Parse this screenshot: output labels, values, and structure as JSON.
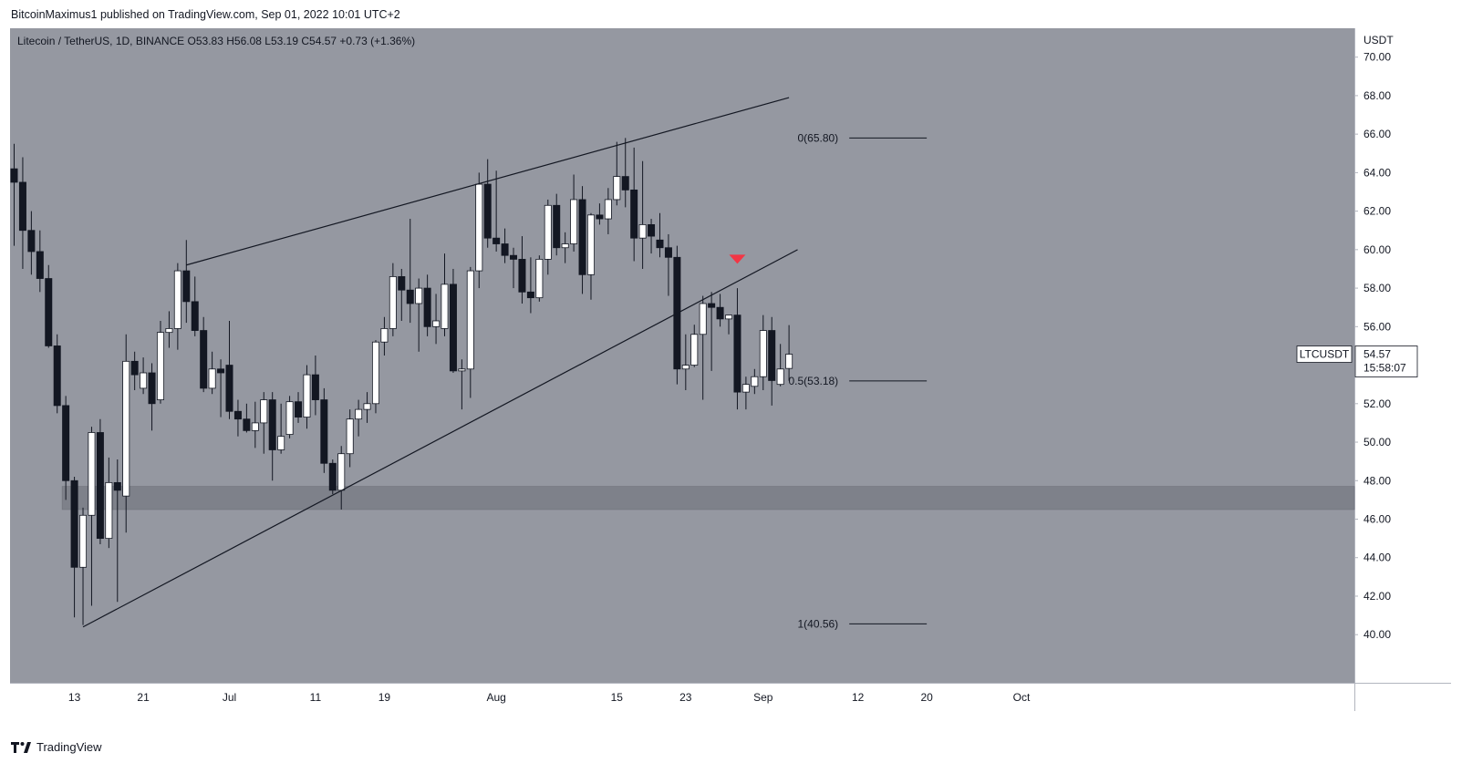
{
  "header": {
    "published_text": "BitcoinMaximus1 published on TradingView.com, Sep 01, 2022 10:01 UTC+2"
  },
  "footer": {
    "brand": "TradingView",
    "logo_icon": "tradingview-logo-icon"
  },
  "colors": {
    "background": "#9598a1",
    "bull": "#ffffff",
    "bear": "#131722",
    "support_zone": "#7a7d86",
    "arrow": "#f23645"
  },
  "legend": {
    "symbol": "Litecoin / TetherUS, 1D, BINANCE",
    "o_label": "O",
    "o_value": "53.83",
    "h_label": "H",
    "h_value": "56.08",
    "l_label": "L",
    "l_value": "53.19",
    "c_label": "C",
    "c_value": "54.57",
    "change": "+0.73 (+1.36%)"
  },
  "price_label": {
    "symbol": "LTCUSDT",
    "price": "54.57",
    "countdown": "15:58:07"
  },
  "chart_data": {
    "type": "candlestick",
    "title": "Litecoin / TetherUS, 1D, BINANCE",
    "y_axis_unit": "USDT",
    "ylim": [
      37.5,
      71.5
    ],
    "y_ticks": [
      "40.00",
      "42.00",
      "44.00",
      "46.00",
      "48.00",
      "50.00",
      "52.00",
      "54.00",
      "56.00",
      "58.00",
      "60.00",
      "62.00",
      "64.00",
      "66.00",
      "68.00",
      "70.00"
    ],
    "x_ticks": [
      {
        "label": "13",
        "date": "2022-06-13"
      },
      {
        "label": "21",
        "date": "2022-06-21"
      },
      {
        "label": "Jul",
        "date": "2022-07-01"
      },
      {
        "label": "11",
        "date": "2022-07-11"
      },
      {
        "label": "19",
        "date": "2022-07-19"
      },
      {
        "label": "Aug",
        "date": "2022-08-01"
      },
      {
        "label": "15",
        "date": "2022-08-15"
      },
      {
        "label": "23",
        "date": "2022-08-23"
      },
      {
        "label": "Sep",
        "date": "2022-09-01"
      },
      {
        "label": "12",
        "date": "2022-09-12"
      },
      {
        "label": "20",
        "date": "2022-09-20"
      },
      {
        "label": "Oct",
        "date": "2022-10-01"
      }
    ],
    "x_start_date": "2022-06-06",
    "candles": [
      {
        "date": "2022-06-06",
        "o": 64.2,
        "h": 65.5,
        "l": 60.2,
        "c": 63.5
      },
      {
        "date": "2022-06-07",
        "o": 63.5,
        "h": 64.8,
        "l": 59.0,
        "c": 61.0
      },
      {
        "date": "2022-06-08",
        "o": 61.0,
        "h": 62.0,
        "l": 58.7,
        "c": 59.9
      },
      {
        "date": "2022-06-09",
        "o": 59.9,
        "h": 61.0,
        "l": 57.8,
        "c": 58.5
      },
      {
        "date": "2022-06-10",
        "o": 58.5,
        "h": 59.2,
        "l": 54.9,
        "c": 55.0
      },
      {
        "date": "2022-06-11",
        "o": 55.0,
        "h": 55.6,
        "l": 51.5,
        "c": 51.9
      },
      {
        "date": "2022-06-12",
        "o": 51.9,
        "h": 52.4,
        "l": 47.0,
        "c": 48.0
      },
      {
        "date": "2022-06-13",
        "o": 48.0,
        "h": 48.2,
        "l": 40.9,
        "c": 43.5
      },
      {
        "date": "2022-06-14",
        "o": 43.5,
        "h": 46.6,
        "l": 40.5,
        "c": 46.2
      },
      {
        "date": "2022-06-15",
        "o": 46.2,
        "h": 50.8,
        "l": 41.5,
        "c": 50.5
      },
      {
        "date": "2022-06-16",
        "o": 50.5,
        "h": 51.2,
        "l": 44.7,
        "c": 45.0
      },
      {
        "date": "2022-06-17",
        "o": 45.0,
        "h": 49.2,
        "l": 44.5,
        "c": 47.9
      },
      {
        "date": "2022-06-18",
        "o": 47.9,
        "h": 49.1,
        "l": 41.7,
        "c": 47.5
      },
      {
        "date": "2022-06-19",
        "o": 47.2,
        "h": 55.6,
        "l": 45.3,
        "c": 54.2
      },
      {
        "date": "2022-06-20",
        "o": 54.2,
        "h": 54.7,
        "l": 52.7,
        "c": 53.5
      },
      {
        "date": "2022-06-21",
        "o": 52.8,
        "h": 54.4,
        "l": 52.5,
        "c": 53.6
      },
      {
        "date": "2022-06-22",
        "o": 53.6,
        "h": 54.1,
        "l": 50.6,
        "c": 52.0
      },
      {
        "date": "2022-06-23",
        "o": 52.2,
        "h": 56.3,
        "l": 52.0,
        "c": 55.7
      },
      {
        "date": "2022-06-24",
        "o": 55.7,
        "h": 56.8,
        "l": 54.9,
        "c": 55.9
      },
      {
        "date": "2022-06-25",
        "o": 55.9,
        "h": 59.3,
        "l": 54.8,
        "c": 58.9
      },
      {
        "date": "2022-06-26",
        "o": 58.9,
        "h": 60.5,
        "l": 56.2,
        "c": 57.3
      },
      {
        "date": "2022-06-27",
        "o": 57.3,
        "h": 58.6,
        "l": 55.5,
        "c": 55.8
      },
      {
        "date": "2022-06-28",
        "o": 55.8,
        "h": 56.5,
        "l": 52.6,
        "c": 52.8
      },
      {
        "date": "2022-06-29",
        "o": 52.8,
        "h": 54.7,
        "l": 52.5,
        "c": 53.8
      },
      {
        "date": "2022-06-30",
        "o": 53.8,
        "h": 54.3,
        "l": 51.3,
        "c": 53.6
      },
      {
        "date": "2022-07-01",
        "o": 54.0,
        "h": 56.3,
        "l": 51.2,
        "c": 51.6
      },
      {
        "date": "2022-07-02",
        "o": 51.6,
        "h": 52.2,
        "l": 50.3,
        "c": 51.2
      },
      {
        "date": "2022-07-03",
        "o": 51.2,
        "h": 52.0,
        "l": 50.5,
        "c": 50.6
      },
      {
        "date": "2022-07-04",
        "o": 50.6,
        "h": 52.1,
        "l": 49.7,
        "c": 51.0
      },
      {
        "date": "2022-07-05",
        "o": 51.0,
        "h": 52.6,
        "l": 49.4,
        "c": 52.2
      },
      {
        "date": "2022-07-06",
        "o": 52.2,
        "h": 52.6,
        "l": 48.0,
        "c": 49.6
      },
      {
        "date": "2022-07-07",
        "o": 49.6,
        "h": 52.0,
        "l": 49.4,
        "c": 50.3
      },
      {
        "date": "2022-07-08",
        "o": 50.4,
        "h": 52.4,
        "l": 50.2,
        "c": 52.1
      },
      {
        "date": "2022-07-09",
        "o": 52.1,
        "h": 52.6,
        "l": 51.0,
        "c": 51.3
      },
      {
        "date": "2022-07-10",
        "o": 51.3,
        "h": 54.0,
        "l": 50.7,
        "c": 53.5
      },
      {
        "date": "2022-07-11",
        "o": 53.5,
        "h": 54.5,
        "l": 51.4,
        "c": 52.2
      },
      {
        "date": "2022-07-12",
        "o": 52.2,
        "h": 52.8,
        "l": 48.4,
        "c": 48.9
      },
      {
        "date": "2022-07-13",
        "o": 48.9,
        "h": 49.1,
        "l": 47.3,
        "c": 47.5
      },
      {
        "date": "2022-07-14",
        "o": 47.5,
        "h": 49.8,
        "l": 46.5,
        "c": 49.4
      },
      {
        "date": "2022-07-15",
        "o": 49.4,
        "h": 51.7,
        "l": 48.7,
        "c": 51.2
      },
      {
        "date": "2022-07-16",
        "o": 51.2,
        "h": 52.2,
        "l": 50.3,
        "c": 51.7
      },
      {
        "date": "2022-07-17",
        "o": 51.7,
        "h": 52.6,
        "l": 51.0,
        "c": 52.0
      },
      {
        "date": "2022-07-18",
        "o": 52.0,
        "h": 55.3,
        "l": 51.5,
        "c": 55.2
      },
      {
        "date": "2022-07-19",
        "o": 55.2,
        "h": 56.5,
        "l": 54.5,
        "c": 55.9
      },
      {
        "date": "2022-07-20",
        "o": 55.9,
        "h": 59.3,
        "l": 55.5,
        "c": 58.6
      },
      {
        "date": "2022-07-21",
        "o": 58.6,
        "h": 59.0,
        "l": 56.3,
        "c": 57.9
      },
      {
        "date": "2022-07-22",
        "o": 57.9,
        "h": 61.6,
        "l": 56.2,
        "c": 57.2
      },
      {
        "date": "2022-07-23",
        "o": 57.2,
        "h": 58.5,
        "l": 54.7,
        "c": 58.0
      },
      {
        "date": "2022-07-24",
        "o": 58.0,
        "h": 58.7,
        "l": 55.5,
        "c": 56.0
      },
      {
        "date": "2022-07-25",
        "o": 56.0,
        "h": 57.7,
        "l": 55.1,
        "c": 56.3
      },
      {
        "date": "2022-07-26",
        "o": 55.9,
        "h": 59.8,
        "l": 55.5,
        "c": 58.2
      },
      {
        "date": "2022-07-27",
        "o": 58.2,
        "h": 59.0,
        "l": 53.6,
        "c": 53.7
      },
      {
        "date": "2022-07-28",
        "o": 53.7,
        "h": 54.3,
        "l": 51.7,
        "c": 53.8
      },
      {
        "date": "2022-07-29",
        "o": 53.8,
        "h": 59.1,
        "l": 52.3,
        "c": 58.9
      },
      {
        "date": "2022-07-30",
        "o": 58.9,
        "h": 64.0,
        "l": 58.0,
        "c": 63.4
      },
      {
        "date": "2022-07-31",
        "o": 63.4,
        "h": 64.7,
        "l": 60.1,
        "c": 60.6
      },
      {
        "date": "2022-08-01",
        "o": 60.6,
        "h": 64.1,
        "l": 59.9,
        "c": 60.3
      },
      {
        "date": "2022-08-02",
        "o": 60.3,
        "h": 61.1,
        "l": 59.3,
        "c": 59.7
      },
      {
        "date": "2022-08-03",
        "o": 59.7,
        "h": 60.1,
        "l": 58.0,
        "c": 59.5
      },
      {
        "date": "2022-08-04",
        "o": 59.5,
        "h": 60.7,
        "l": 57.2,
        "c": 57.8
      },
      {
        "date": "2022-08-05",
        "o": 57.8,
        "h": 59.6,
        "l": 56.7,
        "c": 57.5
      },
      {
        "date": "2022-08-06",
        "o": 57.5,
        "h": 59.7,
        "l": 57.3,
        "c": 59.5
      },
      {
        "date": "2022-08-07",
        "o": 59.5,
        "h": 62.6,
        "l": 58.7,
        "c": 62.3
      },
      {
        "date": "2022-08-08",
        "o": 62.3,
        "h": 62.9,
        "l": 59.7,
        "c": 60.1
      },
      {
        "date": "2022-08-09",
        "o": 60.1,
        "h": 60.9,
        "l": 59.3,
        "c": 60.3
      },
      {
        "date": "2022-08-10",
        "o": 60.3,
        "h": 63.9,
        "l": 59.9,
        "c": 62.6
      },
      {
        "date": "2022-08-11",
        "o": 62.6,
        "h": 63.3,
        "l": 57.7,
        "c": 58.7
      },
      {
        "date": "2022-08-12",
        "o": 58.7,
        "h": 61.9,
        "l": 57.4,
        "c": 61.8
      },
      {
        "date": "2022-08-13",
        "o": 61.8,
        "h": 62.4,
        "l": 61.3,
        "c": 61.6
      },
      {
        "date": "2022-08-14",
        "o": 61.6,
        "h": 63.2,
        "l": 60.8,
        "c": 62.6
      },
      {
        "date": "2022-08-15",
        "o": 62.6,
        "h": 65.6,
        "l": 62.3,
        "c": 63.8
      },
      {
        "date": "2022-08-16",
        "o": 63.8,
        "h": 65.8,
        "l": 62.2,
        "c": 63.1
      },
      {
        "date": "2022-08-17",
        "o": 63.1,
        "h": 65.3,
        "l": 59.4,
        "c": 60.6
      },
      {
        "date": "2022-08-18",
        "o": 60.6,
        "h": 64.6,
        "l": 59.0,
        "c": 61.3
      },
      {
        "date": "2022-08-19",
        "o": 61.3,
        "h": 61.6,
        "l": 59.8,
        "c": 60.7
      },
      {
        "date": "2022-08-20",
        "o": 60.5,
        "h": 61.9,
        "l": 59.6,
        "c": 60.1
      },
      {
        "date": "2022-08-21",
        "o": 60.1,
        "h": 60.8,
        "l": 57.6,
        "c": 59.6
      },
      {
        "date": "2022-08-22",
        "o": 59.6,
        "h": 60.2,
        "l": 53.0,
        "c": 53.8
      },
      {
        "date": "2022-08-23",
        "o": 53.8,
        "h": 55.6,
        "l": 52.7,
        "c": 54.0
      },
      {
        "date": "2022-08-24",
        "o": 54.0,
        "h": 56.1,
        "l": 53.9,
        "c": 55.6
      },
      {
        "date": "2022-08-25",
        "o": 55.6,
        "h": 57.6,
        "l": 52.2,
        "c": 57.2
      },
      {
        "date": "2022-08-26",
        "o": 57.2,
        "h": 57.8,
        "l": 53.7,
        "c": 57.0
      },
      {
        "date": "2022-08-27",
        "o": 57.0,
        "h": 57.7,
        "l": 56.0,
        "c": 56.4
      },
      {
        "date": "2022-08-28",
        "o": 56.4,
        "h": 56.6,
        "l": 55.6,
        "c": 56.6
      },
      {
        "date": "2022-08-29",
        "o": 56.6,
        "h": 58.0,
        "l": 51.7,
        "c": 52.6
      },
      {
        "date": "2022-08-30",
        "o": 52.6,
        "h": 53.4,
        "l": 51.7,
        "c": 53.0
      },
      {
        "date": "2022-08-31",
        "o": 52.9,
        "h": 53.8,
        "l": 52.5,
        "c": 53.4
      },
      {
        "date": "2022-09-01",
        "o": 53.4,
        "h": 56.6,
        "l": 52.7,
        "c": 55.8
      },
      {
        "date": "2022-09-02",
        "o": 55.8,
        "h": 56.5,
        "l": 51.9,
        "c": 53.2
      },
      {
        "date": "2022-09-03",
        "o": 53.0,
        "h": 55.1,
        "l": 52.9,
        "c": 53.8
      },
      {
        "date": "2022-09-04",
        "o": 53.83,
        "h": 56.08,
        "l": 53.19,
        "c": 54.57
      }
    ],
    "trendlines": [
      {
        "name": "upper-wedge-line",
        "from": {
          "date": "2022-06-26",
          "price": 59.2
        },
        "to": {
          "date": "2022-09-04",
          "price": 67.9
        }
      },
      {
        "name": "lower-wedge-line",
        "from": {
          "date": "2022-06-14",
          "price": 40.4
        },
        "to": {
          "date": "2022-09-05",
          "price": 60.0
        }
      }
    ],
    "support_zone": {
      "from": 46.5,
      "to": 47.7,
      "start_date": "2022-06-12"
    },
    "fib_levels": [
      {
        "label": "0(65.80)",
        "price": 65.8
      },
      {
        "label": "0.5(53.18)",
        "price": 53.18
      },
      {
        "label": "1(40.56)",
        "price": 40.56
      }
    ],
    "fib_start_date": "2022-09-11",
    "fib_end_date": "2022-09-20",
    "resistance_arrow": {
      "date": "2022-08-29",
      "price": 59.5
    }
  }
}
